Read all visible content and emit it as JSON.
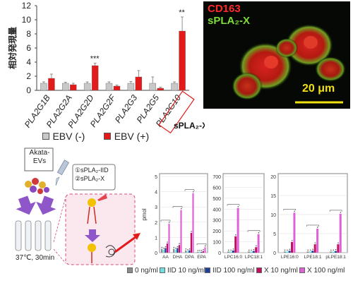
{
  "chart_data": [
    {
      "type": "bar",
      "ylabel": "相対発現量",
      "ylim": [
        0,
        12
      ],
      "yticks": [
        0,
        2,
        4,
        6,
        8,
        10,
        12
      ],
      "categories": [
        "PLA2G1B",
        "PLA2G2A",
        "PLA2G2D",
        "PLA2G2F",
        "PLA2G3",
        "PLA2G5",
        "PLA2G10"
      ],
      "series": [
        {
          "name": "EBV (-)",
          "color": "#c8c8c8",
          "values": [
            1.0,
            1.0,
            1.0,
            1.0,
            1.0,
            1.0,
            1.0
          ],
          "errors": [
            0.2,
            0.15,
            0.2,
            0.2,
            0.25,
            0.9,
            0.2
          ]
        },
        {
          "name": "EBV (+)",
          "color": "#e41a1a",
          "values": [
            1.7,
            0.8,
            3.5,
            0.6,
            1.9,
            0.3,
            8.4
          ],
          "errors": [
            0.6,
            0.2,
            0.35,
            0.15,
            0.9,
            0.15,
            2.0
          ]
        }
      ],
      "annotations": [
        {
          "category": "PLA2G2D",
          "text": "***"
        },
        {
          "category": "PLA2G10",
          "text": "**"
        }
      ],
      "highlighted_category": "PLA2G10",
      "highlight_label": "sPLA₂-X"
    },
    {
      "type": "bar",
      "ylabel": "pmol",
      "ylim": [
        0,
        5
      ],
      "yticks": [
        0,
        1,
        2,
        3,
        4,
        5
      ],
      "categories": [
        "AA",
        "DHA",
        "DPA",
        "EPA"
      ],
      "series": [
        {
          "name": "0 ng/ml",
          "color": "#8c8c8c",
          "values": [
            0.25,
            0.25,
            0.15,
            0.05
          ]
        },
        {
          "name": "IID 10 ng/ml",
          "color": "#6fe0e0",
          "values": [
            0.2,
            0.2,
            0.1,
            0.05
          ]
        },
        {
          "name": "IID 100 ng/ml",
          "color": "#1a3f9e",
          "values": [
            0.3,
            0.3,
            0.15,
            0.05
          ]
        },
        {
          "name": "X 10 ng/ml",
          "color": "#c0105e",
          "values": [
            0.6,
            0.5,
            1.3,
            0.1
          ]
        },
        {
          "name": "X 100 ng/ml",
          "color": "#e060d8",
          "values": [
            1.9,
            2.8,
            3.9,
            0.35
          ]
        }
      ]
    },
    {
      "type": "bar",
      "ylim": [
        0,
        700
      ],
      "yticks": [
        0,
        100,
        200,
        300,
        400,
        500,
        600,
        700
      ],
      "categories": [
        "LPC16:0",
        "LPC18:1"
      ],
      "series": [
        {
          "name": "0 ng/ml",
          "color": "#8c8c8c",
          "values": [
            10,
            10
          ]
        },
        {
          "name": "IID 10 ng/ml",
          "color": "#6fe0e0",
          "values": [
            10,
            10
          ]
        },
        {
          "name": "IID 100 ng/ml",
          "color": "#1a3f9e",
          "values": [
            20,
            15
          ]
        },
        {
          "name": "X 10 ng/ml",
          "color": "#c0105e",
          "values": [
            150,
            50
          ]
        },
        {
          "name": "X 100 ng/ml",
          "color": "#e060d8",
          "values": [
            410,
            170
          ]
        }
      ]
    },
    {
      "type": "bar",
      "ylim": [
        0,
        20
      ],
      "yticks": [
        0,
        5,
        10,
        15,
        20
      ],
      "categories": [
        "LPE16:0",
        "LPE18:1",
        "pLPE18:1"
      ],
      "series": [
        {
          "name": "0 ng/ml",
          "color": "#8c8c8c",
          "values": [
            0.3,
            0.3,
            0.3
          ]
        },
        {
          "name": "IID 10 ng/ml",
          "color": "#6fe0e0",
          "values": [
            0.3,
            0.3,
            0.3
          ]
        },
        {
          "name": "IID 100 ng/ml",
          "color": "#1a3f9e",
          "values": [
            0.5,
            0.5,
            0.4
          ]
        },
        {
          "name": "X 10 ng/ml",
          "color": "#c0105e",
          "values": [
            2.8,
            2.2,
            2.2
          ]
        },
        {
          "name": "X 100 ng/ml",
          "color": "#e060d8",
          "values": [
            10.5,
            6.3,
            10.2
          ]
        }
      ]
    }
  ],
  "micrograph": {
    "label_1": "CD163",
    "label_1_color": "#ff2a2a",
    "label_2": "sPLA₂-X",
    "label_2_color": "#7ddc3c",
    "scale_bar": "20 μm",
    "scale_color": "#f0e010"
  },
  "top_legend": {
    "neg": "EBV (-)",
    "pos": "EBV (+)"
  },
  "schematic": {
    "box_label_line1": "Akata-",
    "box_label_line2": "EVs",
    "treat_1": "①sPLA₂-IID",
    "treat_2": "②sPLA₂-X",
    "condition": "37℃, 30min"
  },
  "bottom_legend": [
    {
      "label": "0 ng/ml",
      "color": "#8c8c8c"
    },
    {
      "label": "IID 10 ng/ml",
      "color": "#6fe0e0"
    },
    {
      "label": "IID 100 ng/ml",
      "color": "#1a3f9e"
    },
    {
      "label": "X 10 ng/ml",
      "color": "#c0105e"
    },
    {
      "label": "X 100 ng/ml",
      "color": "#e060d8"
    }
  ]
}
